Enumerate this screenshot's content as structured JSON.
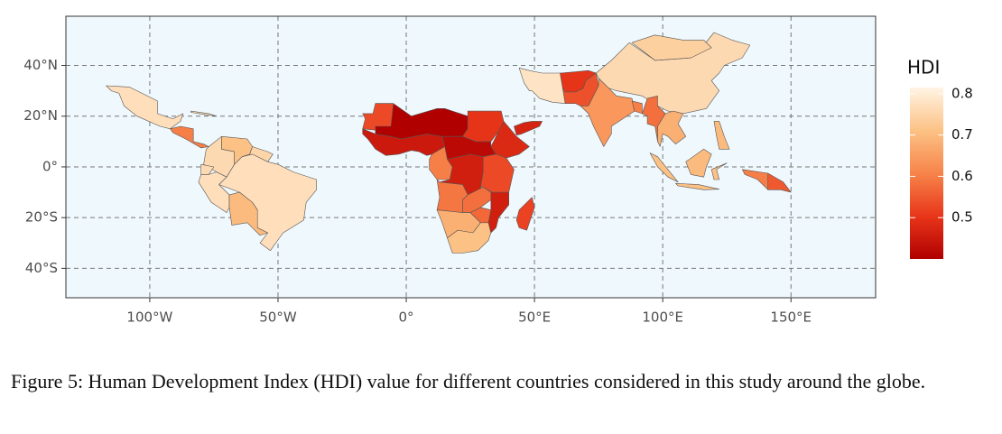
{
  "chart_data": {
    "type": "choropleth",
    "caption": "Figure 5: Human Development Index (HDI) value for different countries considered in this study around the globe.",
    "legend_title": "HDI",
    "background": "#eff8fd",
    "grid": true,
    "xlim": [
      -132.7,
      183
    ],
    "ylim": [
      -51.6,
      59.4
    ],
    "xticks": [
      {
        "value": -100,
        "label": "100°W"
      },
      {
        "value": -50,
        "label": "50°W"
      },
      {
        "value": 0,
        "label": "0°"
      },
      {
        "value": 50,
        "label": "50°E"
      },
      {
        "value": 100,
        "label": "100°E"
      },
      {
        "value": 150,
        "label": "150°E"
      }
    ],
    "yticks": [
      {
        "value": -40,
        "label": "40°S"
      },
      {
        "value": -20,
        "label": "20°S"
      },
      {
        "value": 0,
        "label": "0°"
      },
      {
        "value": 20,
        "label": "20°N"
      },
      {
        "value": 40,
        "label": "40°N"
      }
    ],
    "clim": [
      0.4,
      0.815
    ],
    "cticks": [
      0.5,
      0.6,
      0.7,
      0.8
    ],
    "colors": [
      "#b00000",
      "#e8361a",
      "#f7844a",
      "#fcc285",
      "#fff4e4"
    ],
    "values": [
      0.77,
      0.6,
      0.76,
      0.76,
      0.71,
      0.75,
      0.76,
      0.77,
      0.77,
      0.7,
      0.45,
      0.4,
      0.53,
      0.5,
      0.48,
      0.42,
      0.6,
      0.46,
      0.53,
      0.59,
      0.58,
      0.46,
      0.68,
      0.57,
      0.71,
      0.52,
      0.47,
      0.78,
      0.5,
      0.54,
      0.64,
      0.6,
      0.76,
      0.74,
      0.58,
      0.68,
      0.7,
      0.7,
      0.71,
      0.71,
      0.71,
      0.55,
      0.6
    ]
  }
}
